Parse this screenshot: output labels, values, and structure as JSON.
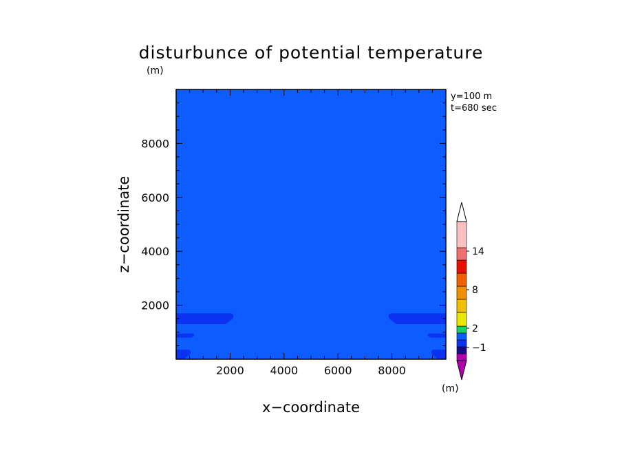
{
  "chart_data": {
    "type": "heatmap",
    "title": "disturbunce of potential temperature",
    "xlabel": "x−coordinate",
    "ylabel": "z−coordinate",
    "x_unit": "(m)",
    "y_unit": "(m)",
    "xlim": [
      0,
      10000
    ],
    "ylim": [
      0,
      10000
    ],
    "xticks": [
      "2000",
      "4000",
      "6000",
      "8000"
    ],
    "yticks": [
      "2000",
      "4000",
      "6000",
      "8000"
    ],
    "info_lines": [
      "y=100  m",
      "t=680  sec"
    ],
    "background_level_color": "#0d5cff",
    "contour_color": "#0a32f0",
    "contour_regions": [
      {
        "side": "left",
        "x_range": [
          0,
          2200
        ],
        "z_range": [
          1300,
          1700
        ],
        "level": "-1"
      },
      {
        "side": "left",
        "x_range": [
          0,
          700
        ],
        "z_range": [
          800,
          950
        ],
        "level": "-1"
      },
      {
        "side": "left",
        "x_range": [
          0,
          600
        ],
        "z_range": [
          0,
          350
        ],
        "level": "-1"
      },
      {
        "side": "right",
        "x_range": [
          7800,
          10000
        ],
        "z_range": [
          1300,
          1700
        ],
        "level": "-1"
      },
      {
        "side": "right",
        "x_range": [
          9300,
          10000
        ],
        "z_range": [
          800,
          950
        ],
        "level": "-1"
      },
      {
        "side": "right",
        "x_range": [
          9400,
          10000
        ],
        "z_range": [
          0,
          350
        ],
        "level": "-1"
      }
    ],
    "colorbar": {
      "unit": "(m)",
      "tick_labels": [
        "14",
        "8",
        "2",
        "−1"
      ],
      "colors_bottom_to_top": [
        "#b000b0",
        "#1a0a8c",
        "#0a32f0",
        "#0d5cff",
        "#1ad060",
        "#e8e800",
        "#f0c000",
        "#f09000",
        "#f06000",
        "#e81000",
        "#f07070",
        "#f8c0c0"
      ],
      "end_top_color": "#ffffff",
      "end_bottom_color": "#b000b0"
    }
  }
}
